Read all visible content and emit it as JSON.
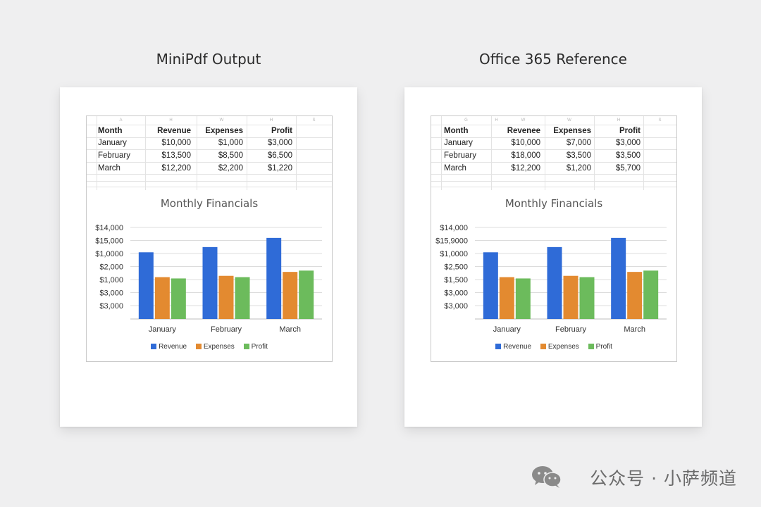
{
  "colors": {
    "revenue": "#2f6bd7",
    "expenses": "#e38a30",
    "profit": "#6cbb5c"
  },
  "column_letters": {
    "left": [
      "A",
      "H",
      "W",
      "H",
      "S"
    ],
    "right": [
      "G",
      "H",
      "W",
      "W",
      "H",
      "S"
    ]
  },
  "panels": [
    {
      "title": "MiniPdf Output",
      "table": {
        "headers": [
          "Month",
          "Revenue",
          "Expenses",
          "Profit"
        ],
        "rows": [
          [
            "January",
            "$10,000",
            "$1,000",
            "$3,000"
          ],
          [
            "February",
            "$13,500",
            "$8,500",
            "$6,500"
          ],
          [
            "March",
            "$12,200",
            "$2,200",
            "$1,220"
          ]
        ]
      },
      "chart_data": {
        "type": "bar",
        "title": "Monthly Financials",
        "categories": [
          "January",
          "February",
          "March"
        ],
        "y_tick_labels": [
          "$14,000",
          "$15,000",
          "$1,0000",
          "$2,000",
          "$1,000",
          "$3,000",
          "$3,000"
        ],
        "ylim": [
          0,
          7
        ],
        "series": [
          {
            "name": "Revenue",
            "values": [
              5.1,
              5.5,
              6.2
            ]
          },
          {
            "name": "Expenses",
            "values": [
              3.2,
              3.3,
              3.6
            ]
          },
          {
            "name": "Profit",
            "values": [
              3.1,
              3.2,
              3.7
            ]
          }
        ],
        "legend": "bottom",
        "grid": true
      }
    },
    {
      "title": "Office 365 Reference",
      "table": {
        "headers": [
          "Month",
          "Revenee",
          "Expenses",
          "Profit"
        ],
        "rows": [
          [
            "January",
            "$10,000",
            "$7,000",
            "$3,000"
          ],
          [
            "February",
            "$18,000",
            "$3,500",
            "$3,500"
          ],
          [
            "March",
            "$12,200",
            "$1,200",
            "$5,700"
          ]
        ]
      },
      "chart_data": {
        "type": "bar",
        "title": "Monthly Financials",
        "categories": [
          "January",
          "February",
          "March"
        ],
        "y_tick_labels": [
          "$14,000",
          "$15,9000",
          "$1,0000",
          "$2,500",
          "$1,500",
          "$3,000",
          "$3,000"
        ],
        "ylim": [
          0,
          7
        ],
        "series": [
          {
            "name": "Revenue",
            "values": [
              5.1,
              5.5,
              6.2
            ]
          },
          {
            "name": "Expenses",
            "values": [
              3.2,
              3.3,
              3.6
            ]
          },
          {
            "name": "Profit",
            "values": [
              3.1,
              3.2,
              3.7
            ]
          }
        ],
        "legend": "bottom",
        "grid": true
      }
    }
  ],
  "watermark": "公众号 · 小萨频道"
}
